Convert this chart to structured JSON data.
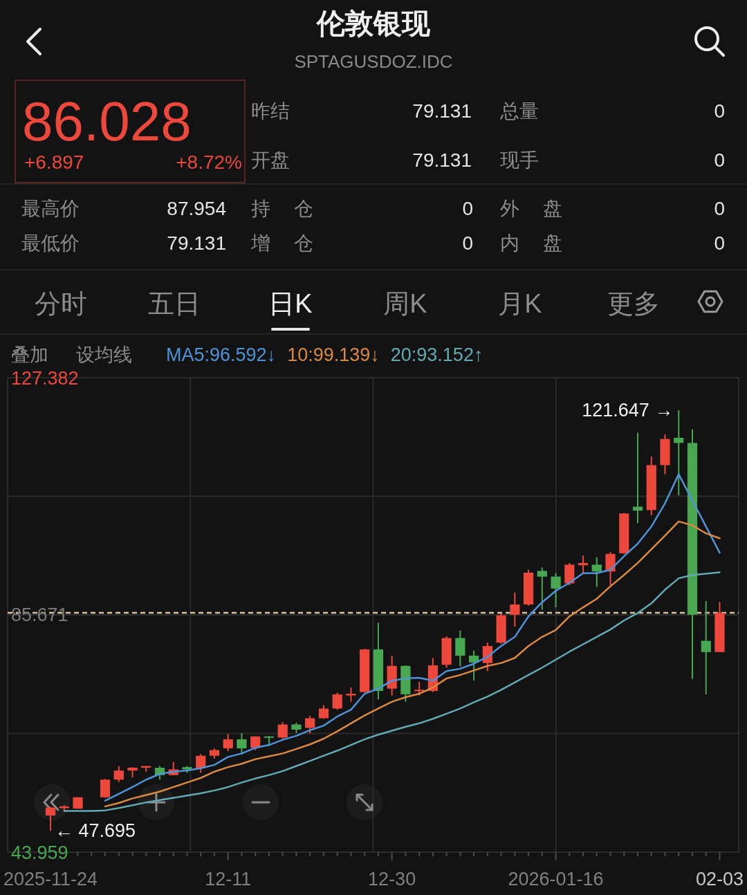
{
  "chart_data": {
    "type": "candlestick",
    "title": "伦敦银现",
    "subtitle": "SPTAGUSDOZ.IDC",
    "categories": [
      "2025-11-24",
      null,
      null,
      null,
      null,
      null,
      null,
      null,
      null,
      null,
      null,
      null,
      null,
      "12-11",
      null,
      null,
      null,
      null,
      null,
      null,
      null,
      null,
      null,
      null,
      null,
      "12-30",
      null,
      null,
      null,
      null,
      null,
      null,
      null,
      null,
      null,
      null,
      null,
      "2026-01-16",
      null,
      null,
      null,
      null,
      null,
      null,
      null,
      null,
      null,
      null,
      null,
      "02-03"
    ],
    "ohlc": [
      [
        50.4,
        51.9,
        47.695,
        51.8
      ],
      [
        51.7,
        52.2,
        51.1,
        52.0
      ],
      [
        51.6,
        53.6,
        51.6,
        53.6
      ],
      null,
      [
        53.6,
        56.8,
        53.5,
        56.7
      ],
      [
        56.7,
        59.1,
        56.3,
        58.3
      ],
      [
        58.3,
        58.9,
        57.1,
        58.8
      ],
      [
        58.8,
        59.1,
        58.1,
        59.1
      ],
      [
        58.8,
        59.1,
        56.7,
        57.5
      ],
      [
        57.5,
        59.8,
        57.5,
        58.5
      ],
      [
        58.9,
        59.1,
        57.9,
        58.5
      ],
      [
        58.7,
        61.2,
        57.9,
        60.9
      ],
      [
        60.9,
        62.2,
        60.4,
        61.9
      ],
      [
        62.2,
        64.7,
        61.7,
        63.8
      ],
      [
        63.8,
        64.9,
        61.1,
        62.2
      ],
      [
        62.3,
        64.3,
        61.9,
        64.3
      ],
      [
        64.3,
        64.4,
        62.6,
        64.1
      ],
      [
        64.1,
        66.8,
        63.9,
        66.4
      ],
      [
        66.4,
        66.7,
        64.9,
        65.5
      ],
      [
        65.8,
        67.9,
        64.8,
        67.5
      ],
      [
        67.5,
        69.8,
        67.4,
        69.2
      ],
      [
        69.2,
        72.0,
        69.0,
        71.7
      ],
      [
        71.5,
        72.9,
        70.4,
        71.8
      ],
      [
        72.1,
        79.7,
        72.0,
        79.6
      ],
      [
        79.6,
        84.3,
        70.8,
        72.3
      ],
      [
        72.7,
        78.5,
        71.5,
        76.7
      ],
      [
        76.7,
        76.8,
        70.4,
        71.7
      ],
      [
        72.3,
        73.9,
        71.5,
        72.5
      ],
      [
        72.3,
        78.1,
        72.1,
        76.8
      ],
      [
        76.9,
        81.9,
        76.4,
        81.6
      ],
      [
        81.6,
        82.9,
        76.6,
        78.5
      ],
      [
        78.5,
        79.4,
        74.1,
        77.3
      ],
      [
        77.2,
        80.8,
        75.8,
        80.2
      ],
      [
        80.8,
        85.9,
        80.6,
        85.6
      ],
      [
        85.7,
        89.6,
        83.6,
        87.5
      ],
      [
        87.5,
        93.6,
        87.3,
        93.1
      ],
      [
        93.4,
        94.0,
        86.6,
        92.4
      ],
      [
        92.4,
        93.0,
        87.0,
        90.3
      ],
      [
        91.2,
        94.8,
        90.9,
        94.5
      ],
      [
        94.4,
        96.1,
        93.0,
        94.8
      ],
      [
        94.5,
        95.8,
        90.6,
        93.3
      ],
      [
        93.3,
        96.7,
        90.9,
        96.4
      ],
      [
        96.5,
        103.6,
        96.4,
        103.5
      ],
      [
        104.7,
        117.7,
        101.8,
        104.0
      ],
      [
        104.1,
        113.5,
        103.2,
        112.0
      ],
      [
        112.0,
        117.4,
        110.4,
        116.6
      ],
      [
        116.8,
        121.647,
        106.7,
        115.9
      ],
      [
        115.9,
        118.3,
        74.4,
        85.7
      ],
      [
        81.1,
        88.1,
        71.7,
        79.131
      ],
      [
        79.131,
        87.954,
        79.131,
        86.028
      ]
    ],
    "colors": [
      "#ec483c",
      "#ec483c",
      "#ec483c",
      null,
      "#ec483c",
      "#ec483c",
      "#ec483c",
      "#ec483c",
      "#48a852",
      "#ec483c",
      "#48a852",
      "#ec483c",
      "#ec483c",
      "#ec483c",
      "#48a852",
      "#ec483c",
      "#48a852",
      "#ec483c",
      "#48a852",
      "#ec483c",
      "#ec483c",
      "#ec483c",
      "#ec483c",
      "#ec483c",
      "#48a852",
      "#ec483c",
      "#48a852",
      "#ec483c",
      "#ec483c",
      "#ec483c",
      "#48a852",
      "#48a852",
      "#ec483c",
      "#ec483c",
      "#ec483c",
      "#ec483c",
      "#48a852",
      "#48a852",
      "#ec483c",
      "#ec483c",
      "#48a852",
      "#ec483c",
      "#ec483c",
      "#48a852",
      "#ec483c",
      "#ec483c",
      "#48a852",
      "#48a852",
      "#48a852",
      "#ec483c"
    ],
    "series": [
      {
        "name": "MA5:",
        "type": "line",
        "color": "#4f93d8",
        "values": [
          null,
          null,
          null,
          null,
          53.0,
          54.2,
          55.4,
          56.7,
          57.7,
          58.1,
          58.3,
          58.7,
          59.3,
          60.7,
          61.3,
          62.3,
          62.8,
          63.7,
          64.4,
          65.4,
          66.2,
          67.8,
          69.0,
          71.8,
          72.7,
          74.1,
          74.5,
          74.6,
          74.1,
          75.8,
          76.2,
          77.1,
          78.3,
          80.2,
          81.8,
          85.4,
          87.9,
          89.9,
          91.3,
          93.0,
          93.0,
          93.6,
          96.0,
          98.2,
          101.2,
          105.3,
          110.4,
          105.8,
          101.2,
          96.592
        ]
      },
      {
        "name": "10:",
        "type": "line",
        "color": "#dc8a42",
        "values": [
          null,
          null,
          null,
          null,
          52.0,
          52.6,
          53.4,
          54.0,
          54.6,
          55.4,
          56.2,
          57.0,
          58.1,
          58.9,
          59.5,
          60.3,
          60.8,
          61.3,
          62.1,
          62.9,
          63.9,
          65.2,
          66.6,
          68.0,
          69.2,
          70.4,
          71.2,
          71.8,
          72.9,
          74.5,
          75.1,
          75.9,
          76.7,
          77.2,
          78.1,
          80.2,
          81.8,
          83.0,
          85.4,
          87.0,
          88.5,
          90.7,
          92.7,
          94.8,
          97.2,
          99.6,
          102.1,
          101.4,
          100.0,
          99.139
        ]
      },
      {
        "name": "20:",
        "type": "line",
        "color": "#62aab4",
        "values": [
          null,
          51.2,
          51.2,
          51.2,
          51.3,
          51.7,
          52.2,
          52.7,
          53.1,
          53.5,
          53.9,
          54.3,
          54.8,
          55.4,
          56.2,
          56.9,
          57.5,
          58.2,
          59.1,
          60.0,
          60.9,
          61.8,
          62.8,
          63.8,
          64.6,
          65.3,
          66.0,
          66.6,
          67.4,
          68.3,
          69.2,
          70.3,
          71.3,
          72.5,
          73.8,
          75.1,
          76.4,
          77.8,
          79.2,
          80.5,
          81.8,
          83.1,
          84.7,
          86.0,
          87.7,
          90.1,
          92.1,
          92.7,
          92.9,
          93.152
        ]
      }
    ],
    "ylim": [
      43.959,
      127.382
    ],
    "yticks": [
      43.959,
      {
        "value": 64.815,
        "label": null
      },
      85.671,
      {
        "value": 106.526,
        "label": null
      },
      127.382
    ],
    "grid": true,
    "legend": "top left",
    "ref_lines": [
      {
        "axis": "y",
        "value": 86.028,
        "color": "#dcc4a0",
        "line_style": "dashed"
      }
    ],
    "annotations": [
      "121.647 →",
      {
        "text": "← 47.695",
        "x": "2025-11-24",
        "y": 47.695
      },
      "86.028",
      "+6.897",
      "+8.72%",
      "昨结",
      "79.131",
      "总量",
      "0",
      "开盘",
      "79.131",
      "现手",
      "0",
      "最高价",
      "87.954",
      "持 仓",
      "0",
      "外 盘",
      "0",
      "最低价",
      "79.131",
      "增 仓",
      "0",
      "内 盘",
      "0",
      "分时",
      "五日",
      "日K",
      "周K",
      "月K",
      "更多",
      "叠加",
      "设均线",
      "96.592↓",
      "99.139↓",
      "93.152↑"
    ]
  }
}
